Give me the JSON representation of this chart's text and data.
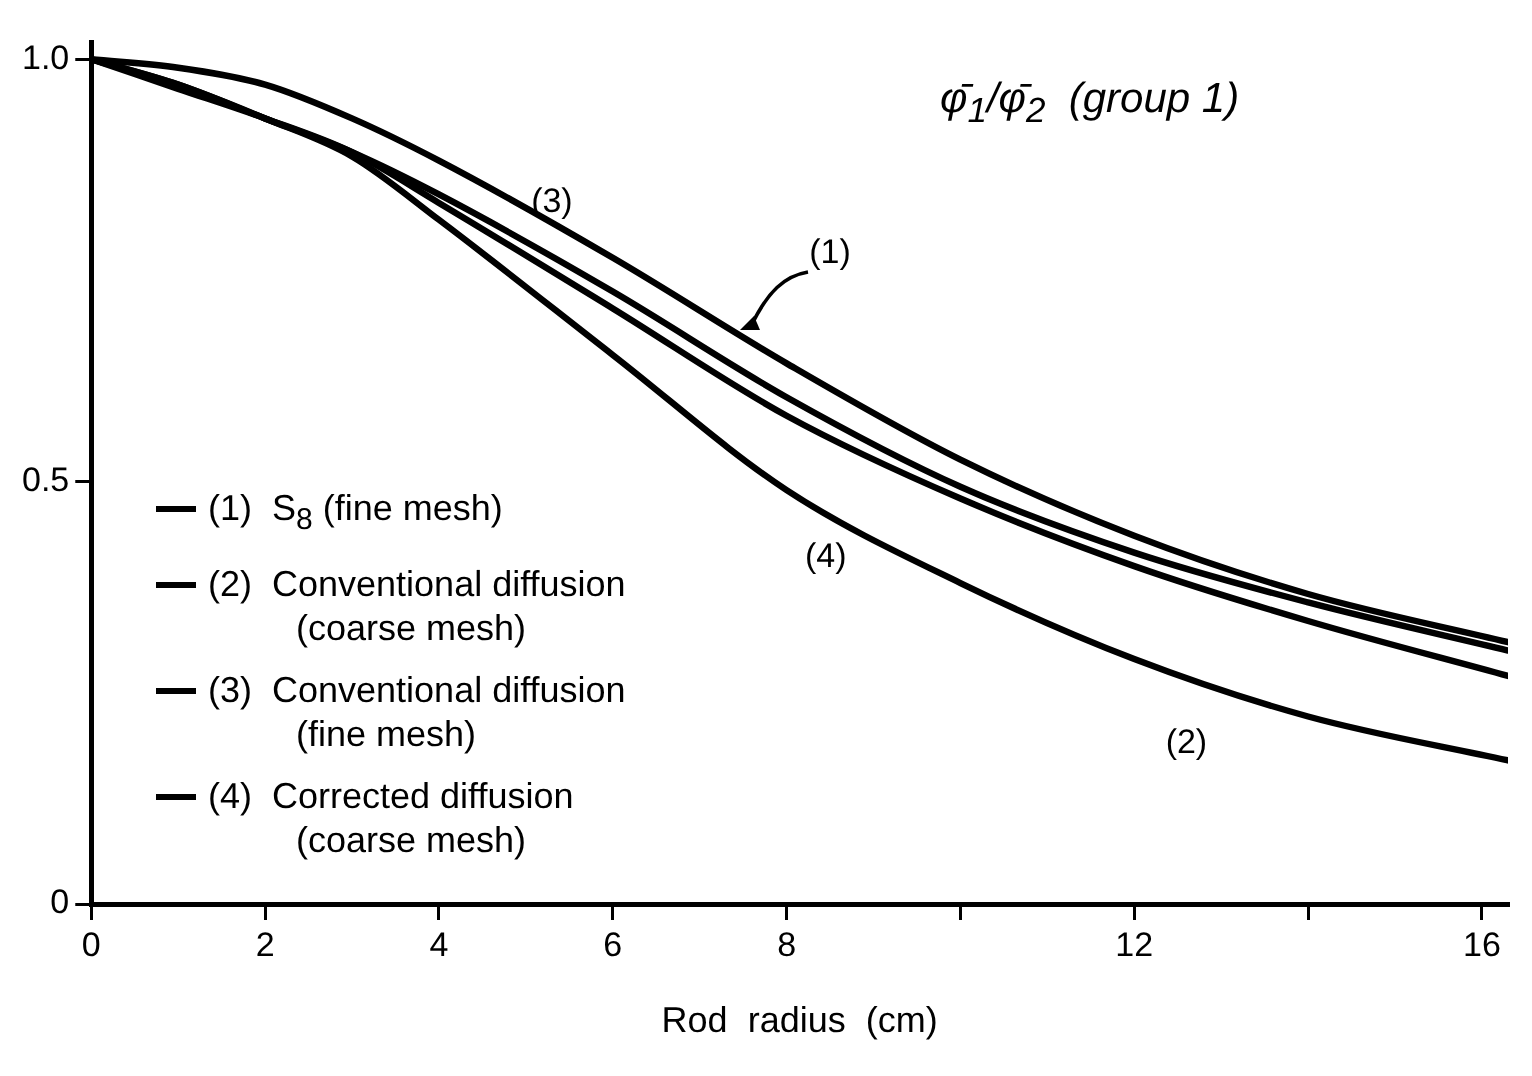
{
  "chart_data": {
    "type": "line",
    "title": "φ̄$_{1}$/φ̄$_{2}$  (group 1)",
    "xlabel": "Rod  radius  (cm)",
    "x": [
      0,
      1,
      2,
      3,
      4,
      6,
      8,
      10,
      12,
      14,
      16.3
    ],
    "series": [
      {
        "name": "(1)  S$_{8}$ (fine mesh)",
        "color": "#000000",
        "values": [
          1.0,
          0.97,
          0.93,
          0.89,
          0.84,
          0.725,
          0.6,
          0.494,
          0.416,
          0.357,
          0.3
        ]
      },
      {
        "name": "(2)  Conventional diffusion (coarse mesh)",
        "color": "#000000",
        "values": [
          1.0,
          0.97,
          0.93,
          0.885,
          0.81,
          0.65,
          0.49,
          0.38,
          0.29,
          0.222,
          0.17
        ]
      },
      {
        "name": "(3)  Conventional diffusion (fine mesh)",
        "color": "#000000",
        "values": [
          1.0,
          0.99,
          0.97,
          0.93,
          0.88,
          0.765,
          0.64,
          0.526,
          0.436,
          0.367,
          0.31
        ]
      },
      {
        "name": "(4)  Corrected diffusion (coarse mesh)",
        "color": "#000000",
        "values": [
          1.0,
          0.965,
          0.93,
          0.89,
          0.83,
          0.705,
          0.578,
          0.48,
          0.4,
          0.335,
          0.27
        ]
      }
    ],
    "xlim": [
      0,
      16.3
    ],
    "ylim": [
      0,
      1.02
    ],
    "xticks": [
      0,
      2,
      4,
      6,
      8,
      {
        "value": 10,
        "label": null
      },
      12,
      {
        "value": 14,
        "label": null
      },
      16
    ],
    "yticks": [
      0,
      0.5,
      {
        "value": 1.0,
        "label": "1.0"
      }
    ],
    "grid": false,
    "legend": "bottom left",
    "marker": "none",
    "line_style": "solid",
    "annotations": [
      "(3)",
      "(1)",
      "(4)",
      "(2)"
    ]
  }
}
